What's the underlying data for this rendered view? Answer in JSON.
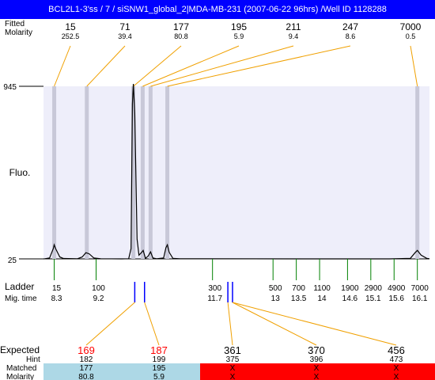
{
  "header": {
    "title": "BCL2L1-3'ss / 7 / siSNW1_global_2|MDA-MB-231 (2007-06-22 96hrs) /Well ID 1128288"
  },
  "top_table": {
    "row1_label": "Fitted",
    "row2_label": "Molarity",
    "peaks": [
      {
        "size": "15",
        "molarity": "252.5",
        "mig": 8.3
      },
      {
        "size": "71",
        "molarity": "39.4",
        "mig": 9.0
      },
      {
        "size": "177",
        "molarity": "80.8",
        "mig": 10.0
      },
      {
        "size": "195",
        "molarity": "5.9",
        "mig": 10.2
      },
      {
        "size": "211",
        "molarity": "9.4",
        "mig": 10.37
      },
      {
        "size": "247",
        "molarity": "8.6",
        "mig": 10.73
      },
      {
        "size": "7000",
        "molarity": "0.5",
        "mig": 16.1
      }
    ]
  },
  "chart_data": {
    "type": "line",
    "ylabel": "Fluo.",
    "y_ticks": [
      "945",
      "25"
    ],
    "ylim": [
      25,
      945
    ],
    "xlim": [
      8.07,
      16.36
    ],
    "trace_points": [
      [
        8.07,
        25
      ],
      [
        8.1,
        26
      ],
      [
        8.2,
        30
      ],
      [
        8.28,
        80
      ],
      [
        8.3,
        100
      ],
      [
        8.33,
        80
      ],
      [
        8.42,
        35
      ],
      [
        8.5,
        27
      ],
      [
        8.8,
        26
      ],
      [
        8.9,
        35
      ],
      [
        8.98,
        58
      ],
      [
        9.05,
        52
      ],
      [
        9.15,
        30
      ],
      [
        9.3,
        26
      ],
      [
        9.75,
        25
      ],
      [
        9.9,
        26
      ],
      [
        9.95,
        80
      ],
      [
        9.98,
        850
      ],
      [
        10.0,
        975
      ],
      [
        10.03,
        800
      ],
      [
        10.08,
        130
      ],
      [
        10.12,
        45
      ],
      [
        10.18,
        60
      ],
      [
        10.21,
        70
      ],
      [
        10.26,
        28
      ],
      [
        10.32,
        40
      ],
      [
        10.37,
        62
      ],
      [
        10.42,
        30
      ],
      [
        10.5,
        26
      ],
      [
        10.65,
        30
      ],
      [
        10.7,
        85
      ],
      [
        10.73,
        100
      ],
      [
        10.77,
        60
      ],
      [
        10.85,
        28
      ],
      [
        11.0,
        26
      ],
      [
        14.0,
        25
      ],
      [
        15.5,
        25
      ],
      [
        15.95,
        28
      ],
      [
        16.05,
        58
      ],
      [
        16.1,
        70
      ],
      [
        16.18,
        45
      ],
      [
        16.3,
        28
      ],
      [
        16.36,
        26
      ]
    ],
    "ladder_label": "Ladder",
    "mig_label": "Mig. time",
    "ladder": [
      {
        "size": "15",
        "mig": "8.3"
      },
      {
        "size": "100",
        "mig": "9.2"
      },
      {
        "size": "300",
        "mig": "11.7"
      },
      {
        "size": "500",
        "mig": "13"
      },
      {
        "size": "700",
        "mig": "13.5"
      },
      {
        "size": "1100",
        "mig": "14"
      },
      {
        "size": "1900",
        "mig": "14.6"
      },
      {
        "size": "2900",
        "mig": "15.1"
      },
      {
        "size": "4900",
        "mig": "15.6"
      },
      {
        "size": "7000",
        "mig": "16.1"
      }
    ],
    "expected_markers": [
      10.03,
      10.24,
      12.03,
      12.13
    ]
  },
  "bottom_table": {
    "expected_label": "Expected",
    "hint_label": "Hint",
    "matched_label": "Matched",
    "molarity_label": "Molarity",
    "columns": [
      {
        "expected": "169",
        "hint": "182",
        "matched": "177",
        "molarity": "80.8",
        "status": "ok",
        "marker": 0
      },
      {
        "expected": "187",
        "hint": "199",
        "matched": "195",
        "molarity": "5.9",
        "status": "ok",
        "marker": 1
      },
      {
        "expected": "361",
        "hint": "375",
        "matched": "X",
        "molarity": "X",
        "status": "fail",
        "marker": 2
      },
      {
        "expected": "370",
        "hint": "396",
        "matched": "X",
        "molarity": "X",
        "status": "fail",
        "marker": 3
      },
      {
        "expected": "456",
        "hint": "473",
        "matched": "X",
        "molarity": "X",
        "status": "fail",
        "marker": 3
      }
    ]
  },
  "colors": {
    "header_bg": "#0000ff",
    "plot_bg": "#eeeefa",
    "band": "#c8c8d8",
    "connector": "#f0a000",
    "ladder_tick": "#008000",
    "marker": "#0000ff",
    "expected_ok": "#ff0000",
    "matched_ok_bg": "#add8e6",
    "matched_fail_bg": "#ff0000"
  }
}
